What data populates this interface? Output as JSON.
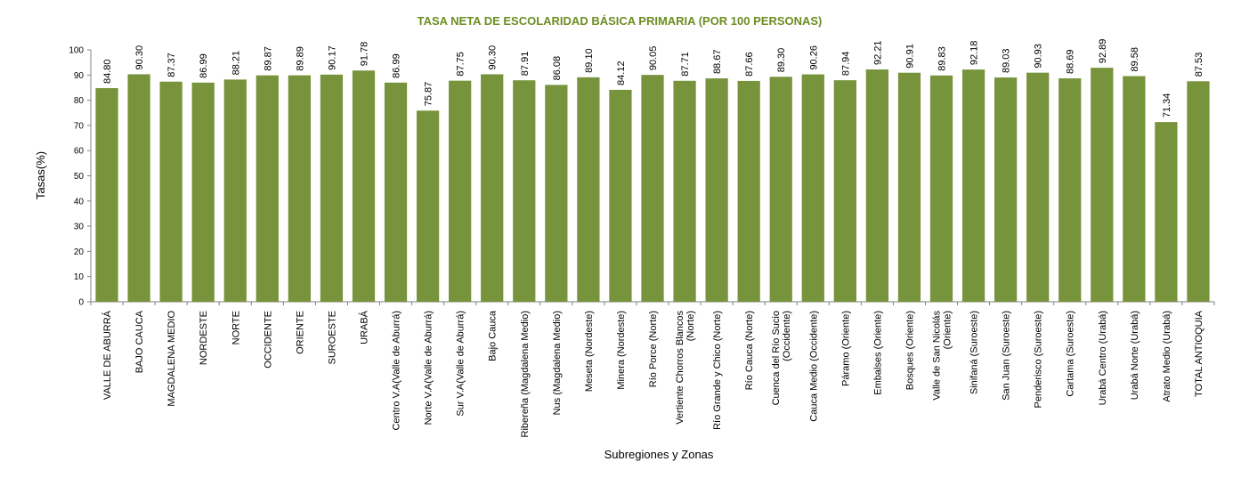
{
  "chart_data": {
    "type": "bar",
    "title": "TASA NETA DE ESCOLARIDAD BÁSICA PRIMARIA (POR 100 PERSONAS)",
    "xlabel": "Subregiones y Zonas",
    "ylabel": "Tasas(%)",
    "ylim": [
      0,
      100
    ],
    "yticks": [
      "0",
      "10",
      "20",
      "30",
      "40",
      "50",
      "60",
      "70",
      "80",
      "90",
      "100"
    ],
    "grid": false,
    "legend": "none",
    "bar_color": "#77933c",
    "categories": [
      [
        "VALLE DE ABURRÁ"
      ],
      [
        "BAJO CAUCA"
      ],
      [
        "MAGDALENA MEDIO"
      ],
      [
        "NORDESTE"
      ],
      [
        "NORTE"
      ],
      [
        "OCCIDENTE"
      ],
      [
        "ORIENTE"
      ],
      [
        "SUROESTE"
      ],
      [
        "URABÁ"
      ],
      [
        "Centro V.A(Valle de Aburrá)"
      ],
      [
        "Norte V.A(Valle de Aburrá)"
      ],
      [
        "Sur V.A(Valle de Aburrá)"
      ],
      [
        "Bajo Cauca"
      ],
      [
        "Ribereña (Magdalena Medio)"
      ],
      [
        "Nus (Magdalena Medio)"
      ],
      [
        "Meseta (Nordeste)"
      ],
      [
        "Minera (Nordeste)"
      ],
      [
        "Río Porce (Norte)"
      ],
      [
        "Vertiente Chorros Blancos",
        "(Norte)"
      ],
      [
        "Río Grande y Chico (Norte)"
      ],
      [
        "Río Cauca (Norte)"
      ],
      [
        "Cuenca del Río Sucio",
        "(Occidente)"
      ],
      [
        "Cauca Medio (Occidente)"
      ],
      [
        "Páramo (Oriente)"
      ],
      [
        "Embalses (Oriente)"
      ],
      [
        "Bosques (Oriente)"
      ],
      [
        "Valle de San Nicolás",
        "(Oriente)"
      ],
      [
        "Sinifaná (Suroeste)"
      ],
      [
        "San Juan (Suroeste)"
      ],
      [
        "Penderisco (Suroeste)"
      ],
      [
        "Cartama (Suroeste)"
      ],
      [
        "Urabá Centro (Urabá)"
      ],
      [
        "Urabá Norte (Urabá)"
      ],
      [
        "Atrato Medio (Urabá)"
      ],
      [
        "TOTAL ANTIOQUIA"
      ]
    ],
    "values": [
      84.8,
      90.3,
      87.37,
      86.99,
      88.21,
      89.87,
      89.89,
      90.17,
      91.78,
      86.99,
      75.87,
      87.75,
      90.3,
      87.91,
      86.08,
      89.1,
      84.12,
      90.05,
      87.71,
      88.67,
      87.66,
      89.3,
      90.26,
      87.94,
      92.21,
      90.91,
      89.83,
      92.18,
      89.03,
      90.93,
      88.69,
      92.89,
      89.58,
      71.34,
      87.53
    ],
    "value_labels": [
      "84.80",
      "90.30",
      "87.37",
      "86.99",
      "88.21",
      "89.87",
      "89.89",
      "90.17",
      "91.78",
      "86.99",
      "75.87",
      "87.75",
      "90.30",
      "87.91",
      "86.08",
      "89.10",
      "84.12",
      "90.05",
      "87.71",
      "88.67",
      "87.66",
      "89.30",
      "90.26",
      "87.94",
      "92.21",
      "90.91",
      "89.83",
      "92.18",
      "89.03",
      "90.93",
      "88.69",
      "92.89",
      "89.58",
      "71.34",
      "87.53"
    ]
  }
}
